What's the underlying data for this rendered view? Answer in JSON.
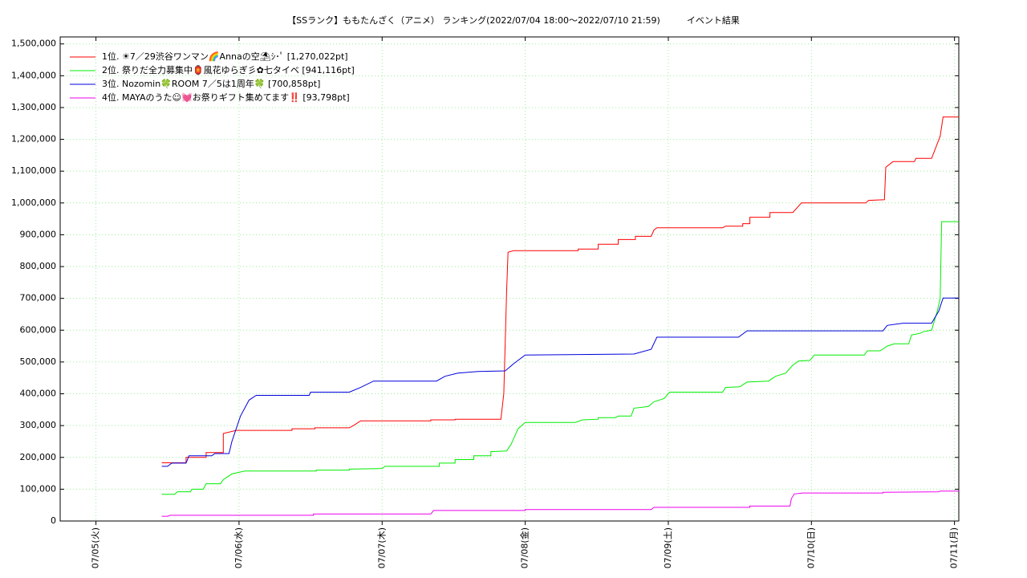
{
  "chart_data": {
    "type": "line",
    "title": "【SSランク】ももたんざく（アニメ） ランキング(2022/07/04 18:00〜2022/07/10 21:59)　　　イベント結果",
    "xlim": [
      4.75,
      11.03
    ],
    "xticks": [
      {
        "value": 5,
        "label": "07/05(火)"
      },
      {
        "value": 6,
        "label": "07/06(水)"
      },
      {
        "value": 7,
        "label": "07/07(木)"
      },
      {
        "value": 8,
        "label": "07/08(金)"
      },
      {
        "value": 9,
        "label": "07/09(土)"
      },
      {
        "value": 10,
        "label": "07/10(日)"
      },
      {
        "value": 11,
        "label": "07/11(月)"
      }
    ],
    "ylim": [
      0,
      1522000
    ],
    "yticks": [
      0,
      {
        "value": 100000,
        "label": "100,000"
      },
      {
        "value": 200000,
        "label": "200,000"
      },
      {
        "value": 300000,
        "label": "300,000"
      },
      {
        "value": 400000,
        "label": "400,000"
      },
      {
        "value": 500000,
        "label": "500,000"
      },
      {
        "value": 600000,
        "label": "600,000"
      },
      {
        "value": 700000,
        "label": "700,000"
      },
      {
        "value": 800000,
        "label": "800,000"
      },
      {
        "value": 900000,
        "label": "900,000"
      },
      {
        "value": 1000000,
        "label": "1,000,000"
      },
      {
        "value": 1100000,
        "label": "1,100,000"
      },
      {
        "value": 1200000,
        "label": "1,200,000"
      },
      {
        "value": 1300000,
        "label": "1,300,000"
      },
      {
        "value": 1400000,
        "label": "1,400,000"
      },
      {
        "value": 1500000,
        "label": "1,500,000"
      }
    ],
    "grid": true,
    "legend": "top-left",
    "series": [
      {
        "name": "1位. ☀7／29渋谷ワンマン🌈Annaの空⛱ｼ･ﾟ [1,270,022pt]",
        "color": "#ff0000",
        "x": [
          5.46,
          5.63,
          5.63,
          5.77,
          5.77,
          5.89,
          5.89,
          5.98,
          6.37,
          6.37,
          6.53,
          6.53,
          6.77,
          6.8,
          6.85,
          7.34,
          7.34,
          7.51,
          7.51,
          7.83,
          7.85,
          7.87,
          7.88,
          7.92,
          8.37,
          8.37,
          8.51,
          8.51,
          8.65,
          8.65,
          8.77,
          8.77,
          8.88,
          8.9,
          8.92,
          9.38,
          9.4,
          9.52,
          9.52,
          9.57,
          9.57,
          9.71,
          9.71,
          9.87,
          9.93,
          10.38,
          10.4,
          10.51,
          10.52,
          10.57,
          10.72,
          10.73,
          10.84,
          10.9,
          10.92,
          11.03
        ],
        "values": [
          183000,
          183000,
          200000,
          200000,
          215000,
          215000,
          275000,
          285000,
          285000,
          290000,
          290000,
          293000,
          293000,
          300000,
          315000,
          315000,
          318000,
          318000,
          320000,
          320000,
          400000,
          720000,
          845000,
          850000,
          850000,
          855000,
          855000,
          870000,
          870000,
          885000,
          885000,
          895000,
          895000,
          915000,
          922000,
          922000,
          927000,
          927000,
          935000,
          935000,
          955000,
          955000,
          970000,
          970000,
          1000000,
          1000000,
          1008000,
          1010000,
          1112000,
          1130000,
          1130000,
          1140000,
          1140000,
          1210000,
          1270022,
          1270022
        ]
      },
      {
        "name": "2位. 祭りだ全力募集中🏮風花ゆらぎ彡✿七タイベ [941,116pt]",
        "color": "#00ee00",
        "x": [
          5.46,
          5.55,
          5.57,
          5.66,
          5.67,
          5.75,
          5.77,
          5.87,
          5.89,
          5.95,
          6.04,
          6.54,
          6.54,
          6.77,
          6.77,
          7.0,
          7.02,
          7.4,
          7.4,
          7.51,
          7.51,
          7.64,
          7.64,
          7.76,
          7.76,
          7.87,
          7.9,
          7.95,
          8.0,
          8.35,
          8.4,
          8.51,
          8.51,
          8.63,
          8.65,
          8.74,
          8.76,
          8.86,
          8.9,
          8.97,
          9.01,
          9.38,
          9.4,
          9.5,
          9.55,
          9.7,
          9.75,
          9.82,
          9.87,
          9.91,
          9.99,
          10.02,
          10.37,
          10.39,
          10.48,
          10.53,
          10.58,
          10.68,
          10.7,
          10.76,
          10.78,
          10.84,
          10.88,
          10.9,
          10.91,
          11.03
        ],
        "values": [
          84000,
          84000,
          92000,
          92000,
          100000,
          100000,
          117000,
          117000,
          130000,
          148000,
          157000,
          157000,
          160000,
          160000,
          163000,
          165000,
          172000,
          172000,
          182000,
          182000,
          193000,
          193000,
          205000,
          205000,
          218000,
          220000,
          240000,
          290000,
          310000,
          310000,
          318000,
          320000,
          325000,
          325000,
          330000,
          330000,
          355000,
          360000,
          375000,
          385000,
          405000,
          405000,
          420000,
          422000,
          437000,
          440000,
          455000,
          465000,
          490000,
          503000,
          505000,
          522000,
          522000,
          535000,
          535000,
          550000,
          557000,
          557000,
          585000,
          590000,
          595000,
          600000,
          660000,
          700000,
          941116,
          941116
        ]
      },
      {
        "name": "3位. Nozomin🍀ROOM 7／5は1周年🍀 [700,858pt]",
        "color": "#0000dd",
        "x": [
          5.46,
          5.5,
          5.53,
          5.63,
          5.65,
          5.81,
          5.83,
          5.93,
          5.95,
          6.01,
          6.07,
          6.12,
          6.49,
          6.5,
          6.77,
          6.85,
          6.94,
          7.38,
          7.44,
          7.53,
          7.67,
          7.86,
          7.92,
          8.0,
          8.76,
          8.88,
          8.92,
          9.49,
          9.55,
          10.5,
          10.53,
          10.64,
          10.84,
          10.89,
          10.92,
          11.03
        ],
        "values": [
          172000,
          172000,
          182000,
          182000,
          205000,
          205000,
          212000,
          212000,
          250000,
          330000,
          380000,
          395000,
          395000,
          405000,
          405000,
          420000,
          440000,
          440000,
          455000,
          465000,
          470000,
          472000,
          495000,
          522000,
          525000,
          540000,
          578000,
          578000,
          598000,
          598000,
          615000,
          622000,
          622000,
          660000,
          700858,
          700858
        ]
      },
      {
        "name": "4位. MAYAのうた☺💓お祭りギフト集めてます‼️ [93,798pt]",
        "color": "#ee00ee",
        "x": [
          5.46,
          5.5,
          5.52,
          6.52,
          6.52,
          7.34,
          7.36,
          8.0,
          8.0,
          8.88,
          8.9,
          9.57,
          9.57,
          9.85,
          9.86,
          9.88,
          9.94,
          10.5,
          10.5,
          10.89,
          10.9,
          11.03
        ],
        "values": [
          15000,
          15000,
          18000,
          18000,
          22000,
          22000,
          33000,
          33000,
          36000,
          36000,
          43000,
          43000,
          47000,
          47000,
          70000,
          85000,
          88000,
          88000,
          90000,
          92000,
          93798,
          93798
        ]
      }
    ]
  }
}
